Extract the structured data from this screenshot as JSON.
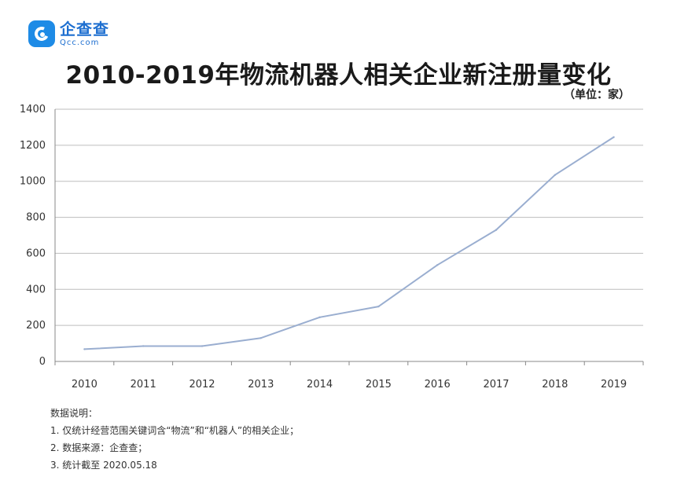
{
  "logo": {
    "cn": "企查查",
    "en": "Qcc.com"
  },
  "title": "2010-2019年物流机器人相关企业新注册量变化",
  "unit": "（单位：家）",
  "chart_data": {
    "type": "line",
    "title": "2010-2019年物流机器人相关企业新注册量变化",
    "xlabel": "",
    "ylabel": "",
    "categories": [
      "2010",
      "2011",
      "2012",
      "2013",
      "2014",
      "2015",
      "2016",
      "2017",
      "2018",
      "2019"
    ],
    "series": [
      {
        "values": [
          68,
          85,
          85,
          130,
          245,
          305,
          535,
          730,
          1035,
          1245
        ]
      }
    ],
    "ylim": [
      0,
      1400
    ],
    "yticks": [
      "0",
      "200",
      "400",
      "600",
      "800",
      "1000",
      "1200",
      "1400"
    ],
    "grid": true,
    "line_color": "#9aaed0",
    "grid_color": "#bdbdbd"
  },
  "notes": {
    "heading": "数据说明：",
    "items": [
      "1. 仅统计经营范围关键词含“物流”和“机器人”的相关企业；",
      "2. 数据来源：企查查；",
      "3. 统计截至 2020.05.18"
    ]
  }
}
